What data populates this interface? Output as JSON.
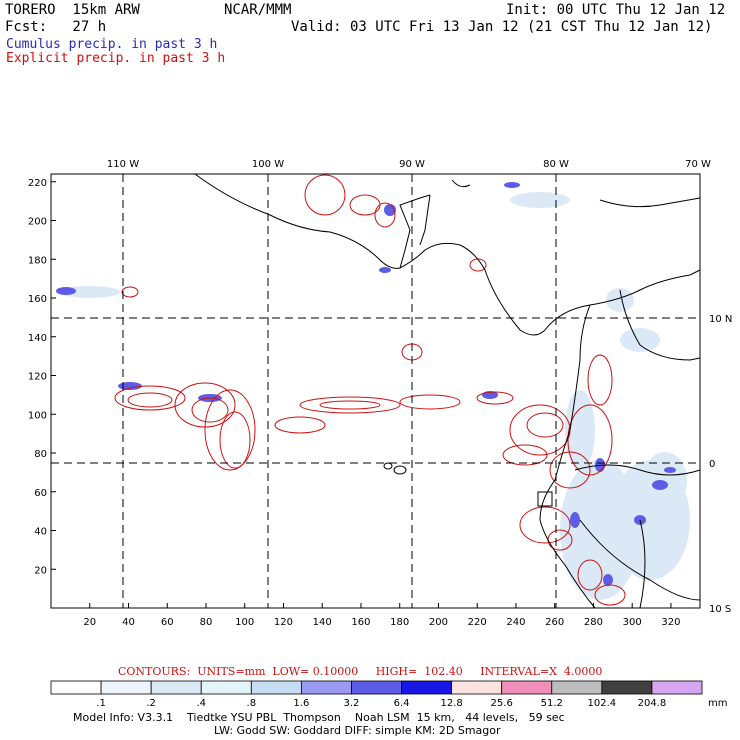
{
  "header": {
    "model": "TORERO  15km ARW",
    "org": "NCAR/MMM",
    "init": "Init: 00 UTC Thu 12 Jan 12",
    "fcst": "Fcst:   27 h",
    "valid": "Valid: 03 UTC Fri 13 Jan 12 (21 CST Thu 12 Jan 12)"
  },
  "legend": {
    "cumulus": "Cumulus precip. in past 3 h",
    "explicit": "Explicit precip. in past 3 h",
    "cumulus_color": "#2a2ab8",
    "explicit_color": "#cc1111"
  },
  "map": {
    "lon_labels": [
      "110 W",
      "100 W",
      "90 W",
      "80 W",
      "70 W"
    ],
    "lat_labels": [
      "10 N",
      "0",
      "10 S"
    ],
    "y_ticks": [
      20,
      40,
      60,
      80,
      100,
      120,
      140,
      160,
      180,
      200,
      220
    ],
    "x_ticks": [
      20,
      40,
      60,
      80,
      100,
      120,
      140,
      160,
      180,
      200,
      220,
      240,
      260,
      280,
      300,
      320
    ]
  },
  "contours": {
    "caption": "CONTOURS:  UNITS=mm  LOW= 0.10000     HIGH=  102.40     INTERVAL=X  4.0000",
    "color": "#cc1111"
  },
  "colorbar": {
    "labels": [
      ".1",
      ".2",
      ".4",
      ".8",
      "1.6",
      "3.2",
      "6.4",
      "12.8",
      "25.6",
      "51.2",
      "102.4",
      "204.8"
    ],
    "colors": [
      "#ffffff",
      "#eef4fb",
      "#dbe9f6",
      "#e2f5f8",
      "#c6dcf2",
      "#9a9af0",
      "#5c5ce6",
      "#1818e6",
      "#fde2e2",
      "#f090b8",
      "#bdbdbd",
      "#404040",
      "#d6a6f2"
    ],
    "unit": "mm"
  },
  "footer": {
    "line1": "Model Info: V3.3.1    Tiedtke YSU PBL  Thompson    Noah LSM  15 km,   44 levels,   59 sec",
    "line2": "LW: Godd SW: Goddard DIFF: simple KM: 2D Smagor"
  }
}
